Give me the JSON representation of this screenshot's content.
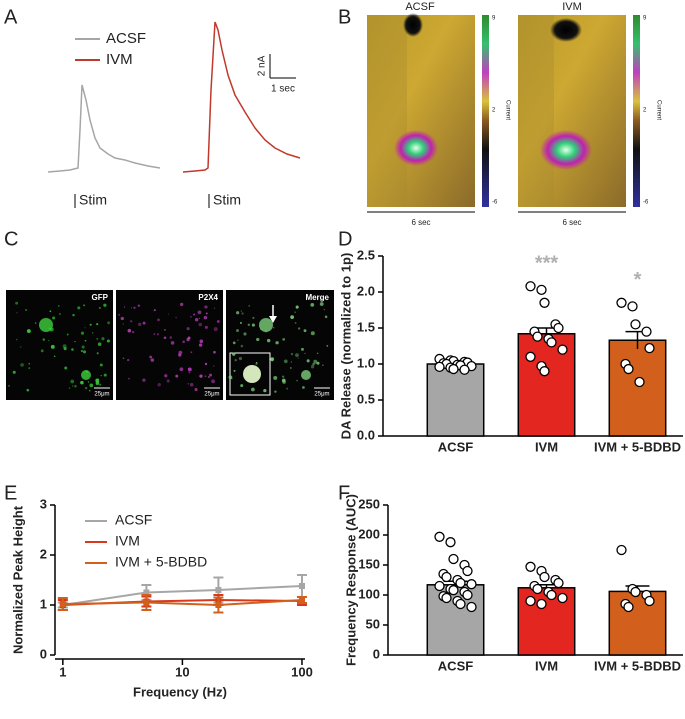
{
  "panel_labels": [
    "A",
    "B",
    "C",
    "D",
    "E",
    "F"
  ],
  "panel_a": {
    "legend": [
      {
        "name": "ACSF",
        "color": "#a6a6a6"
      },
      {
        "name": "IVM",
        "color": "#c0392b"
      }
    ],
    "scale_y": "2 nA",
    "scale_x": "1 sec",
    "stim_labels": [
      "Stim",
      "Stim"
    ]
  },
  "panel_b": {
    "titles": [
      "ACSF",
      "IVM"
    ],
    "colorbars": [
      {
        "ticks": [
          "9",
          "2",
          "-6"
        ],
        "label": "Current"
      },
      {
        "ticks": [
          "9",
          "2",
          "-6"
        ],
        "label": "Current"
      }
    ],
    "time_scales": [
      "6 sec",
      "6 sec"
    ]
  },
  "panel_c": {
    "channels": [
      "GFP",
      "P2X4",
      "Merge"
    ],
    "scale_bars": [
      "25μm",
      "25μm",
      "25μm"
    ]
  },
  "chart_data": [
    {
      "type": "bar",
      "ylabel": "DA Release (normalized to 1p)",
      "categories": [
        "ACSF",
        "IVM",
        "IVM +  5-BDBD"
      ],
      "values": [
        1.0,
        1.42,
        1.33
      ],
      "errors": [
        0.02,
        0.08,
        0.12
      ],
      "colors": [
        "#a6a6a6",
        "#e3261f",
        "#d2601c"
      ],
      "points": [
        [
          1.07,
          1.05,
          1.04,
          1.03,
          1.02,
          1.01,
          1.0,
          0.99,
          0.98,
          0.97,
          0.96,
          0.95,
          0.93,
          0.92
        ],
        [
          2.08,
          2.03,
          1.85,
          1.55,
          1.5,
          1.45,
          1.38,
          1.35,
          1.3,
          1.2,
          1.1,
          0.97,
          0.9
        ],
        [
          1.85,
          1.8,
          1.55,
          1.45,
          1.22,
          1.0,
          0.93,
          0.75
        ]
      ],
      "significance": [
        null,
        "***",
        "*"
      ],
      "significance_color": "#b0b0b0",
      "ylim": [
        0,
        2.5
      ],
      "yticks": [
        {
          "value": 0,
          "label": "0.0"
        },
        {
          "value": 0.5,
          "label": "0.5"
        },
        {
          "value": 1,
          "label": "1.0"
        },
        {
          "value": 1.5,
          "label": "1.5"
        },
        {
          "value": 2,
          "label": "2.0"
        },
        {
          "value": 2.5,
          "label": "2.5"
        }
      ]
    },
    {
      "type": "line",
      "xlabel": "Frequency (Hz)",
      "ylabel": "Normalized Peak Height",
      "xscale": "log",
      "x": [
        1,
        5,
        20,
        100
      ],
      "series": [
        {
          "name": "ACSF",
          "color": "#a6a6a6",
          "values": [
            1.0,
            1.25,
            1.3,
            1.38
          ],
          "errors": [
            0.05,
            0.15,
            0.25,
            0.22
          ]
        },
        {
          "name": "IVM",
          "color": "#d9381e",
          "values": [
            1.0,
            1.07,
            1.1,
            1.08
          ],
          "errors": [
            0.1,
            0.1,
            0.1,
            0.08
          ]
        },
        {
          "name": "IVM + 5-BDBD",
          "color": "#d2601c",
          "values": [
            1.02,
            1.05,
            1.0,
            1.1
          ],
          "errors": [
            0.12,
            0.15,
            0.15,
            0.06
          ]
        }
      ],
      "xlim": [
        0.86,
        106
      ],
      "xticks": [
        1,
        10,
        100
      ],
      "ylim": [
        0,
        3
      ],
      "yticks": [
        0,
        1,
        2,
        3
      ],
      "legend": "upper left"
    },
    {
      "type": "bar",
      "ylabel": "Frequency Response (AUC)",
      "categories": [
        "ACSF",
        "IVM",
        "IVM +  5-BDBD"
      ],
      "values": [
        117,
        112,
        106
      ],
      "errors": [
        6,
        5,
        9
      ],
      "colors": [
        "#a6a6a6",
        "#e3261f",
        "#d2601c"
      ],
      "points": [
        [
          197,
          188,
          160,
          150,
          140,
          135,
          130,
          125,
          120,
          118,
          115,
          110,
          108,
          105,
          100,
          98,
          95,
          90,
          85,
          80
        ],
        [
          147,
          140,
          130,
          125,
          120,
          115,
          110,
          105,
          100,
          95,
          90,
          85
        ],
        [
          175,
          110,
          105,
          100,
          90,
          85,
          80
        ]
      ],
      "ylim": [
        0,
        250
      ],
      "yticks": [
        0,
        50,
        100,
        150,
        200,
        250
      ]
    }
  ]
}
